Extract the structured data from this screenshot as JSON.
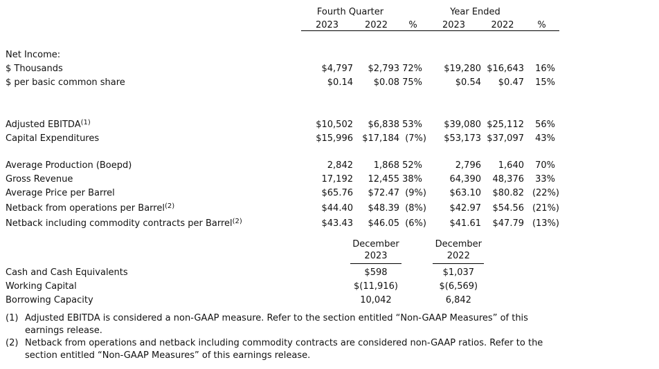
{
  "page": {
    "background": "#ffffff",
    "text_color": "#111111"
  },
  "quarterly_table": {
    "group_headers": [
      "Fourth Quarter",
      "Year Ended"
    ],
    "col_headers": [
      "2023",
      "2022",
      "%",
      "2023",
      "2022",
      "%"
    ],
    "sections": [
      {
        "rows": [
          {
            "label": "Net Income:",
            "cells": [
              "",
              "",
              "",
              "",
              "",
              ""
            ]
          },
          {
            "label": "$ Thousands",
            "cells": [
              "$4,797",
              "$2,793",
              "72%",
              "$19,280",
              "$16,643",
              "16%"
            ]
          },
          {
            "label": "$ per basic common share",
            "cells": [
              "$0.14",
              "$0.08",
              "75%",
              "$0.54",
              "$0.47",
              "15%"
            ]
          }
        ]
      },
      {
        "rows": [
          {
            "label": "Adjusted EBITDA",
            "sup": "(1)",
            "cells": [
              "$10,502",
              "$6,838",
              "53%",
              "$39,080",
              "$25,112",
              "56%"
            ]
          },
          {
            "label": "Capital Expenditures",
            "cells": [
              "$15,996",
              "$17,184",
              "(7%)",
              "$53,173",
              "$37,097",
              "43%"
            ]
          }
        ]
      },
      {
        "rows": [
          {
            "label": "Average Production (Boepd)",
            "cells": [
              "2,842",
              "1,868",
              "52%",
              "2,796",
              "1,640",
              "70%"
            ]
          },
          {
            "label": "Gross Revenue",
            "cells": [
              "17,192",
              "12,455",
              "38%",
              "64,390",
              "48,376",
              "33%"
            ]
          },
          {
            "label": "Average Price per Barrel",
            "cells": [
              "$65.76",
              "$72.47",
              "(9%)",
              "$63.10",
              "$80.82",
              "(22%)"
            ]
          },
          {
            "label": "Netback from operations per Barrel",
            "sup": "(2)",
            "cells": [
              "$44.40",
              "$48.39",
              "(8%)",
              "$42.97",
              "$54.56",
              "(21%)"
            ]
          },
          {
            "label": "Netback including commodity contracts per Barrel",
            "sup": "(2)",
            "cells": [
              "$43.43",
              "$46.05",
              "(6%)",
              "$41.61",
              "$47.79",
              "(13%)"
            ]
          }
        ]
      }
    ]
  },
  "balance_table": {
    "col_headers": [
      {
        "line1": "December",
        "line2": "2023"
      },
      {
        "line1": "December",
        "line2": "2022"
      }
    ],
    "rows": [
      {
        "label": "Cash and Cash Equivalents",
        "cells": [
          "$598",
          "$1,037"
        ]
      },
      {
        "label": "Working Capital",
        "cells": [
          "$(11,916)",
          "$(6,569)"
        ]
      },
      {
        "label": "Borrowing Capacity",
        "cells": [
          "10,042",
          "6,842"
        ]
      }
    ]
  },
  "footnotes": [
    {
      "marker": "(1)",
      "text": "Adjusted EBITDA is considered a non-GAAP measure. Refer to the section entitled “Non-GAAP Measures” of this earnings release."
    },
    {
      "marker": "(2)",
      "text": "Netback from operations and netback including commodity contracts are considered non-GAAP ratios. Refer to the section entitled “Non-GAAP Measures” of this earnings release."
    }
  ]
}
